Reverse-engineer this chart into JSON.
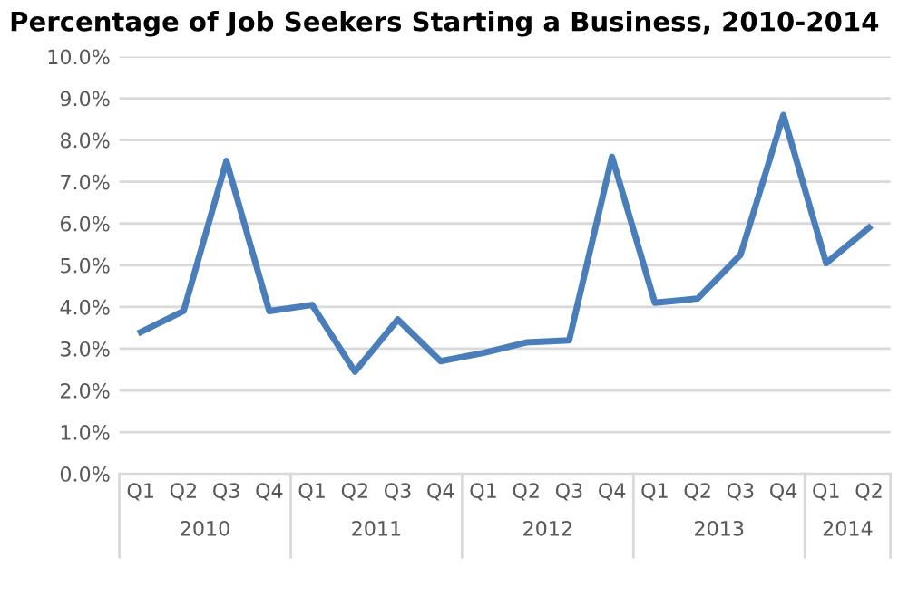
{
  "chart_data": {
    "type": "line",
    "title": "Percentage of Job Seekers Starting a Business, 2010-2014",
    "categories": [
      "Q1",
      "Q2",
      "Q3",
      "Q4",
      "Q1",
      "Q2",
      "Q3",
      "Q4",
      "Q1",
      "Q2",
      "Q3",
      "Q4",
      "Q1",
      "Q2",
      "Q3",
      "Q4",
      "Q1",
      "Q2"
    ],
    "series": [
      {
        "color": "#4a7ebb",
        "values": [
          3.4,
          3.9,
          7.5,
          3.9,
          4.05,
          2.45,
          3.7,
          2.7,
          2.9,
          3.15,
          3.2,
          7.6,
          4.1,
          4.2,
          5.25,
          8.6,
          5.05,
          5.9
        ]
      }
    ],
    "annotations": [
      "2010",
      "2011",
      "2012",
      "2013",
      "2014"
    ],
    "ylim": [
      0,
      10
    ],
    "yticks": [
      {
        "value": 0,
        "label": "0.0%"
      },
      {
        "value": 1,
        "label": "1.0%"
      },
      {
        "value": 2,
        "label": "2.0%"
      },
      {
        "value": 3,
        "label": "3.0%"
      },
      {
        "value": 4,
        "label": "4.0%"
      },
      {
        "value": 5,
        "label": "5.0%"
      },
      {
        "value": 6,
        "label": "6.0%"
      },
      {
        "value": 7,
        "label": "7.0%"
      },
      {
        "value": 8,
        "label": "8.0%"
      },
      {
        "value": 9,
        "label": "9.0%"
      },
      {
        "value": 10,
        "label": "10.0%"
      }
    ],
    "grid": "y",
    "legend": false,
    "marker": "none",
    "line_style": "solid"
  }
}
